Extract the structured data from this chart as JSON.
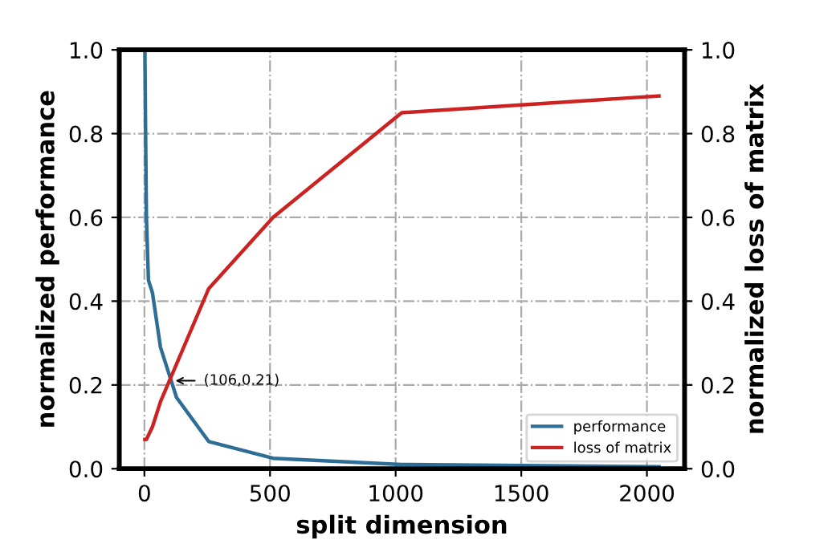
{
  "chart_data": {
    "type": "line",
    "xlabel": "split dimension",
    "ylabel": "normalized performance",
    "y2label": "normalized loss of matrix",
    "x": [
      2,
      4,
      8,
      16,
      32,
      64,
      128,
      256,
      512,
      1024,
      2048
    ],
    "series": [
      {
        "name": "performance",
        "color": "#2e6e96",
        "values": [
          1.0,
          0.85,
          0.6,
          0.45,
          0.42,
          0.29,
          0.17,
          0.065,
          0.025,
          0.01,
          0.005
        ]
      },
      {
        "name": "loss of matrix",
        "color": "#cc2222",
        "values": [
          0.07,
          0.07,
          0.07,
          0.08,
          0.1,
          0.16,
          0.25,
          0.43,
          0.6,
          0.85,
          0.89
        ]
      }
    ],
    "xlim": [
      -100,
      2150
    ],
    "xticks": [
      0,
      500,
      1000,
      1500,
      2000
    ],
    "ylim": [
      0,
      1
    ],
    "yticks": [
      {
        "value": 0,
        "label": "0.0"
      },
      0.2,
      0.4,
      0.6,
      0.8,
      {
        "value": 1,
        "label": "1.0"
      }
    ],
    "y2lim": [
      0,
      1
    ],
    "y2ticks": [
      {
        "value": 0,
        "label": "0.0"
      },
      0.2,
      0.4,
      0.6,
      0.8,
      {
        "value": 1,
        "label": "1.0"
      }
    ],
    "annotations": [
      {
        "text": "(106,0.21)",
        "x": 106,
        "y": 0.21
      }
    ],
    "grid": true,
    "legend": "bottom right",
    "marker": "none",
    "line_style": "solid"
  }
}
